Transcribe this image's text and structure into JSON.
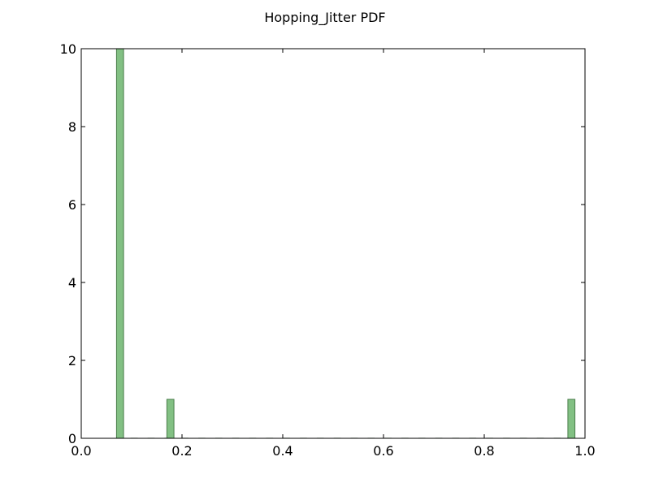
{
  "chart_data": {
    "type": "bar",
    "title": "Hopping_Jitter PDF",
    "xlabel": "",
    "ylabel": "",
    "xlim": [
      0.0,
      1.0
    ],
    "ylim": [
      0,
      10
    ],
    "xticks": [
      "0.0",
      "0.2",
      "0.4",
      "0.6",
      "0.8",
      "1.0"
    ],
    "yticks": [
      "0",
      "2",
      "4",
      "6",
      "8",
      "10"
    ],
    "bins": [
      {
        "x0": 0.07,
        "x1": 0.084,
        "value": 10
      },
      {
        "x0": 0.17,
        "x1": 0.184,
        "value": 1
      },
      {
        "x0": 0.966,
        "x1": 0.98,
        "value": 1
      }
    ],
    "bar_color": "#82c083",
    "bar_edge_color": "#4a7d4b",
    "grid": false,
    "legend": "none"
  }
}
